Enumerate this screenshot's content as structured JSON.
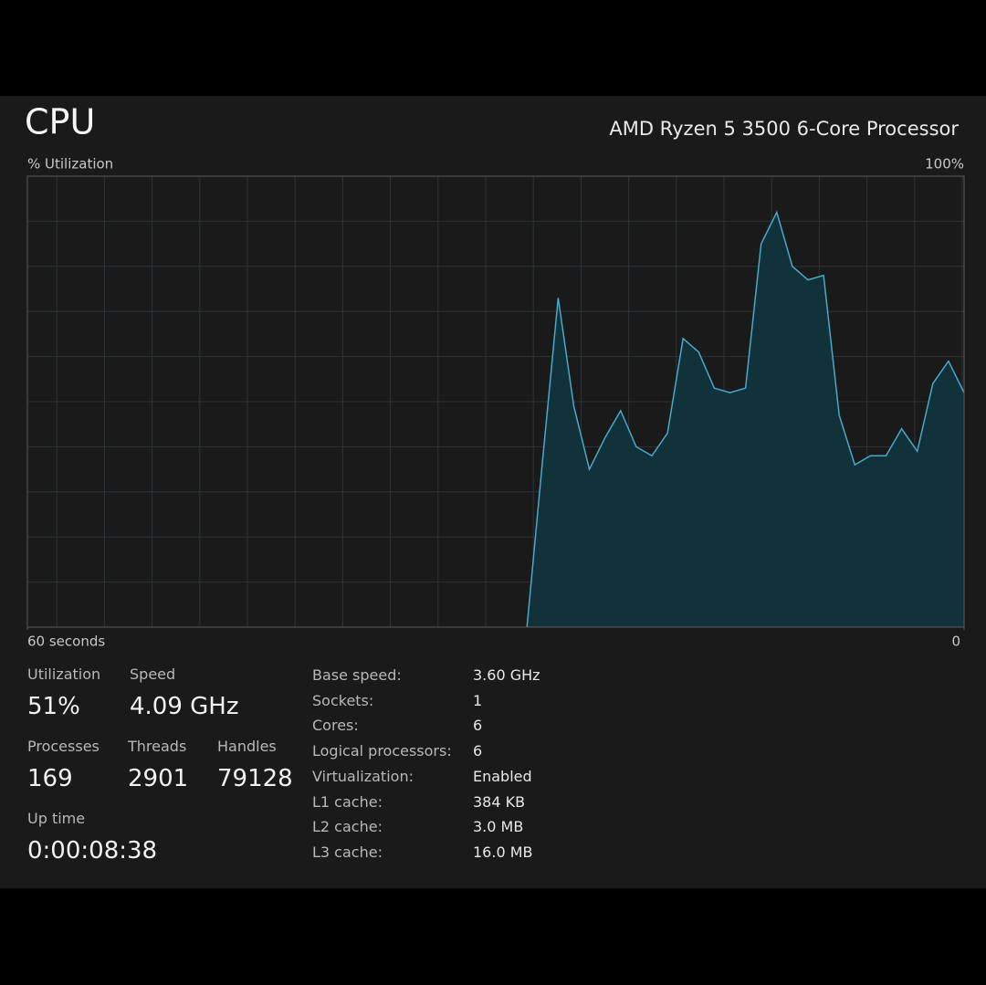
{
  "header": {
    "title": "CPU",
    "processor": "AMD Ryzen 5 3500 6-Core Processor"
  },
  "chart_data": {
    "type": "area",
    "y_label": "% Utilization",
    "x": [
      28,
      27,
      26,
      25,
      24,
      23,
      22,
      21,
      20,
      19,
      18,
      17,
      16,
      15,
      14,
      13,
      12,
      11,
      10,
      9,
      8,
      7,
      6,
      5,
      4,
      3,
      2,
      1,
      0
    ],
    "values": [
      0,
      37,
      73,
      49,
      35,
      42,
      48,
      40,
      38,
      43,
      64,
      61,
      53,
      52,
      53,
      85,
      92,
      80,
      77,
      78,
      47,
      36,
      38,
      38,
      44,
      39,
      54,
      59,
      52
    ],
    "xlim": [
      60,
      0
    ],
    "xticks": [
      {
        "value": 60,
        "label": "60 seconds"
      },
      0
    ],
    "ylim": [
      0,
      100
    ],
    "yticks": [
      {
        "value": 100,
        "label": "100%"
      }
    ],
    "color": "#4aa8c8",
    "fill": "#12323b",
    "grid": true
  },
  "stats": [
    {
      "label": "Utilization",
      "value": "51%"
    },
    {
      "label": "Speed",
      "value": "4.09 GHz"
    },
    {
      "label": "Processes",
      "value": "169"
    },
    {
      "label": "Threads",
      "value": "2901"
    },
    {
      "label": "Handles",
      "value": "79128"
    },
    {
      "label": "Up time",
      "value": "0:00:08:38"
    }
  ],
  "specs": [
    {
      "label": "Base speed:",
      "value": "3.60 GHz"
    },
    {
      "label": "Sockets:",
      "value": "1"
    },
    {
      "label": "Cores:",
      "value": "6"
    },
    {
      "label": "Logical processors:",
      "value": "6"
    },
    {
      "label": "Virtualization:",
      "value": "Enabled"
    },
    {
      "label": "L1 cache:",
      "value": "384 KB"
    },
    {
      "label": "L2 cache:",
      "value": "3.0 MB"
    },
    {
      "label": "L3 cache:",
      "value": "16.0 MB"
    }
  ]
}
